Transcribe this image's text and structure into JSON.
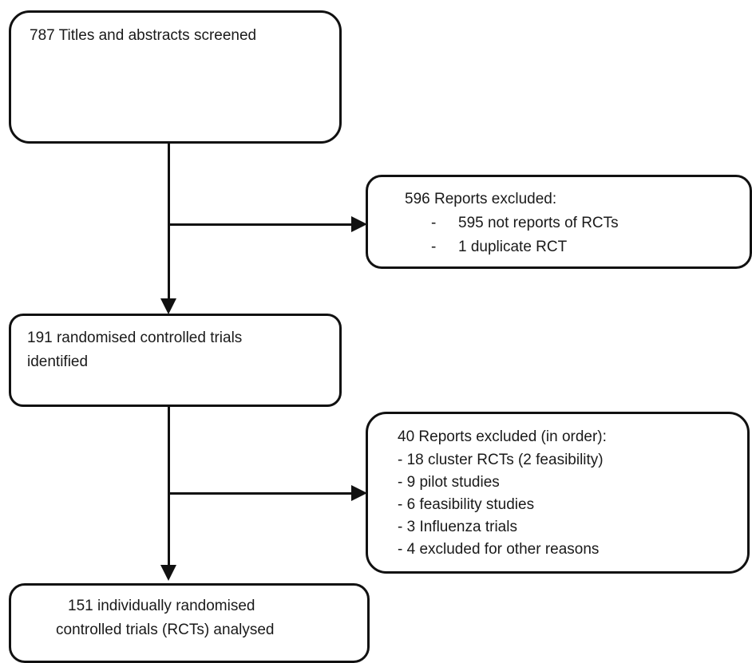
{
  "boxes": {
    "screened": {
      "text": "787 Titles and abstracts screened"
    },
    "excluded_first": {
      "heading": "596 Reports excluded:",
      "items": [
        {
          "bullet": "-",
          "text": "595 not reports of RCTs"
        },
        {
          "bullet": "-",
          "text": "1 duplicate RCT"
        }
      ]
    },
    "identified": {
      "line1": "191 randomised controlled trials",
      "line2": "identified"
    },
    "excluded_second": {
      "heading": "40 Reports excluded (in order):",
      "items": [
        "- 18 cluster RCTs (2 feasibility)",
        "- 9 pilot studies",
        "- 6 feasibility studies",
        "- 3 Influenza trials",
        "- 4 excluded for other reasons"
      ]
    },
    "analysed": {
      "line1": "151 individually randomised",
      "line2": "controlled trials (RCTs) analysed"
    }
  }
}
